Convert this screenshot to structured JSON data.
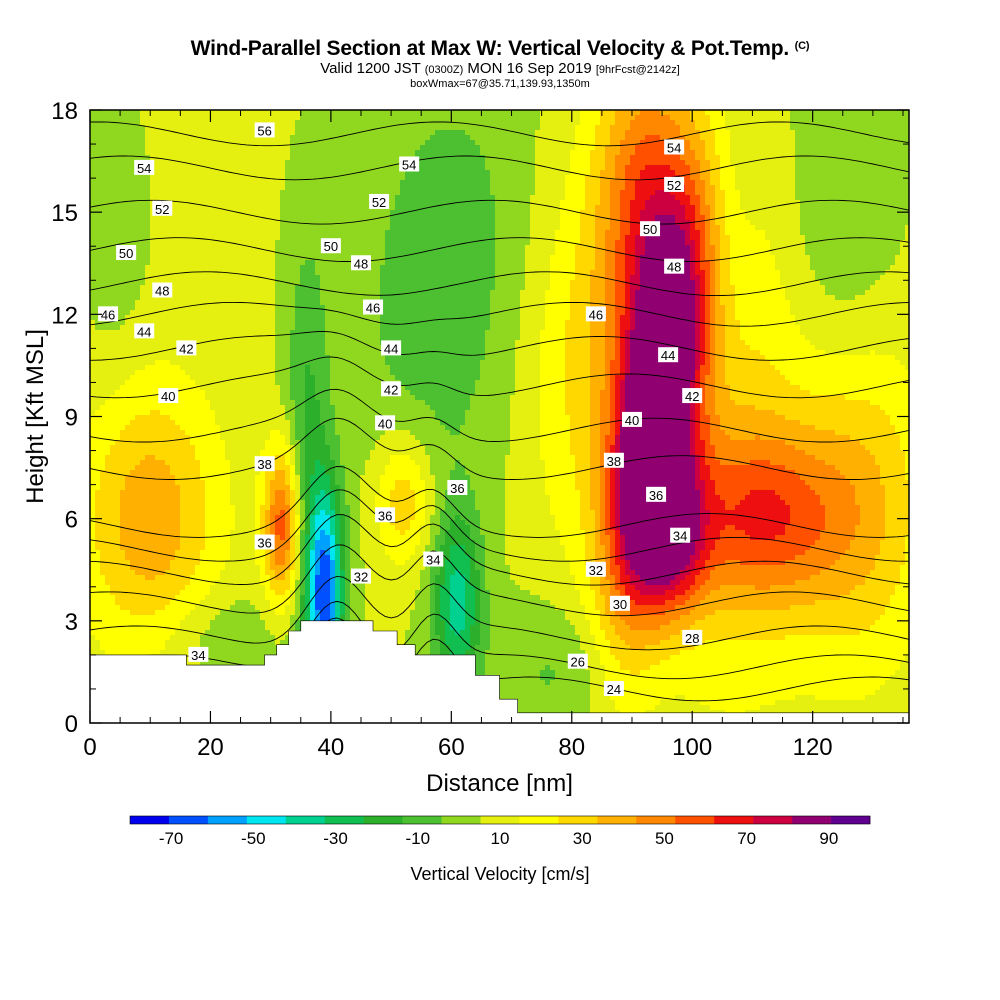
{
  "title": {
    "main": "Wind-Parallel Section at Max W: Vertical Velocity & Pot.Temp.",
    "copyright": "(C)",
    "valid_a": "Valid 1200 JST",
    "valid_utc": "(0300Z)",
    "valid_b": "MON 16 Sep 2019",
    "forecast": "[9hrFcst@2142z]",
    "box": "boxWmax=67@35.71,139.93,1350m"
  },
  "chart_data": {
    "type": "heatmap",
    "xlabel": "Distance [nm]",
    "ylabel": "Height [Kft MSL]",
    "xlim": [
      0,
      136
    ],
    "ylim": [
      0,
      18
    ],
    "xticks": [
      "0",
      "20",
      "40",
      "60",
      "80",
      "100",
      "120"
    ],
    "yticks": [
      "0",
      "3",
      "6",
      "9",
      "12",
      "15",
      "18"
    ],
    "colorbar": {
      "label": "Vertical Velocity [cm/s]",
      "levels": [
        -80,
        -70,
        -60,
        -50,
        -40,
        -30,
        -20,
        -10,
        0,
        10,
        20,
        30,
        40,
        50,
        60,
        70,
        80,
        90,
        100
      ],
      "ticks": [
        "-70",
        "-50",
        "-30",
        "-10",
        "10",
        "30",
        "50",
        "70",
        "90"
      ],
      "colors": [
        "#0000ee",
        "#0050ff",
        "#00a0ff",
        "#00e6f0",
        "#00d090",
        "#10bf50",
        "#2cb02c",
        "#4cc030",
        "#90d820",
        "#e6f010",
        "#ffff00",
        "#ffd800",
        "#ffb000",
        "#ff8800",
        "#ff5000",
        "#ee1010",
        "#cc0040",
        "#900070",
        "#600090"
      ]
    },
    "terrain_kft": [
      [
        0,
        2
      ],
      [
        16,
        2
      ],
      [
        16,
        1.7
      ],
      [
        29,
        1.7
      ],
      [
        29,
        2
      ],
      [
        31,
        2
      ],
      [
        31,
        2.3
      ],
      [
        33,
        2.3
      ],
      [
        33,
        2.7
      ],
      [
        35,
        2.7
      ],
      [
        35,
        3.0
      ],
      [
        38,
        3.0
      ],
      [
        38,
        3.0
      ],
      [
        47,
        3.0
      ],
      [
        47,
        2.7
      ],
      [
        51,
        2.7
      ],
      [
        51,
        2.3
      ],
      [
        54,
        2.3
      ],
      [
        54,
        2.0
      ],
      [
        64,
        2.0
      ],
      [
        64,
        1.4
      ],
      [
        68,
        1.4
      ],
      [
        68,
        0.7
      ],
      [
        71,
        0.7
      ],
      [
        71,
        0.3
      ],
      [
        136,
        0.3
      ]
    ],
    "velocity_features": [
      {
        "x": 94,
        "y": 9.0,
        "sx": 4.5,
        "sy": 4.0,
        "tilt": 0.7,
        "w": 110
      },
      {
        "x": 97,
        "y": 5.5,
        "sx": 4.0,
        "sy": 1.6,
        "tilt": 0,
        "w": 55
      },
      {
        "x": 92,
        "y": 15.5,
        "sx": 5.5,
        "sy": 3.0,
        "tilt": 0,
        "w": 45
      },
      {
        "x": 112,
        "y": 6.0,
        "sx": 9.0,
        "sy": 1.8,
        "tilt": 0,
        "w": 42
      },
      {
        "x": 106,
        "y": 9.0,
        "sx": 10.0,
        "sy": 6.0,
        "tilt": 0,
        "w": 22
      },
      {
        "x": 83,
        "y": 10.5,
        "sx": 8.0,
        "sy": 4.0,
        "tilt": 0,
        "w": 22
      },
      {
        "x": 128,
        "y": 6.5,
        "sx": 8.0,
        "sy": 3.5,
        "tilt": 0,
        "w": 28
      },
      {
        "x": 124,
        "y": 15.0,
        "sx": 7.0,
        "sy": 4.0,
        "tilt": 0,
        "w": -14
      },
      {
        "x": 107,
        "y": 15.5,
        "sx": 3.0,
        "sy": 4.0,
        "tilt": 0,
        "w": -8
      },
      {
        "x": 10,
        "y": 6.0,
        "sx": 8.0,
        "sy": 2.8,
        "tilt": 0,
        "w": 35
      },
      {
        "x": 32,
        "y": 5.8,
        "sx": 2.2,
        "sy": 1.6,
        "tilt": 0,
        "w": 55
      },
      {
        "x": 52,
        "y": 6.5,
        "sx": 3.5,
        "sy": 1.4,
        "tilt": 0,
        "w": 30
      },
      {
        "x": 39,
        "y": 3.8,
        "sx": 2.2,
        "sy": 2.2,
        "tilt": 0,
        "w": -75
      },
      {
        "x": 36,
        "y": 8.5,
        "sx": 2.5,
        "sy": 4.0,
        "tilt": 0,
        "w": -22
      },
      {
        "x": 61,
        "y": 3.5,
        "sx": 2.8,
        "sy": 1.8,
        "tilt": 0,
        "w": -45
      },
      {
        "x": 56,
        "y": 11.0,
        "sx": 11.0,
        "sy": 4.5,
        "tilt": 0,
        "w": -12
      },
      {
        "x": 22,
        "y": 2.5,
        "sx": 8.0,
        "sy": 1.0,
        "tilt": 0,
        "w": -12
      },
      {
        "x": 62,
        "y": 15.0,
        "sx": 10.0,
        "sy": 4.0,
        "tilt": 0,
        "w": -10
      },
      {
        "x": 4,
        "y": 14.0,
        "sx": 4.0,
        "sy": 3.0,
        "tilt": 0,
        "w": -8
      },
      {
        "x": 78,
        "y": 1.5,
        "sx": 8.0,
        "sy": 1.5,
        "tilt": 0,
        "w": -14
      }
    ],
    "isentropes": [
      {
        "level": 24,
        "y0": 1.0
      },
      {
        "level": 26,
        "y0": 1.65
      },
      {
        "level": 28,
        "y0": 2.5
      },
      {
        "level": 30,
        "y0": 3.5
      },
      {
        "level": 32,
        "y0": 4.4
      },
      {
        "level": 34,
        "y0": 5.1
      },
      {
        "level": 36,
        "y0": 5.8
      },
      {
        "level": 38,
        "y0": 7.5
      },
      {
        "level": 40,
        "y0": 8.6
      },
      {
        "level": 42,
        "y0": 9.9
      },
      {
        "level": 44,
        "y0": 11.0
      },
      {
        "level": 46,
        "y0": 12.0
      },
      {
        "level": 48,
        "y0": 12.9
      },
      {
        "level": 50,
        "y0": 13.9
      },
      {
        "level": 52,
        "y0": 15.0
      },
      {
        "level": 54,
        "y0": 16.3
      },
      {
        "level": 56,
        "y0": 17.3
      }
    ],
    "isentrope_labels": [
      {
        "text": "56",
        "x": 29,
        "y": 17.4
      },
      {
        "text": "54",
        "x": 9,
        "y": 16.3
      },
      {
        "text": "54",
        "x": 53,
        "y": 16.4
      },
      {
        "text": "54",
        "x": 97,
        "y": 16.9
      },
      {
        "text": "52",
        "x": 12,
        "y": 15.1
      },
      {
        "text": "52",
        "x": 48,
        "y": 15.3
      },
      {
        "text": "52",
        "x": 97,
        "y": 15.8
      },
      {
        "text": "50",
        "x": 6,
        "y": 13.8
      },
      {
        "text": "50",
        "x": 40,
        "y": 14.0
      },
      {
        "text": "50",
        "x": 93,
        "y": 14.5
      },
      {
        "text": "48",
        "x": 12,
        "y": 12.7
      },
      {
        "text": "48",
        "x": 45,
        "y": 13.5
      },
      {
        "text": "48",
        "x": 97,
        "y": 13.4
      },
      {
        "text": "46",
        "x": 3,
        "y": 12.0
      },
      {
        "text": "46",
        "x": 47,
        "y": 12.2
      },
      {
        "text": "46",
        "x": 84,
        "y": 12.0
      },
      {
        "text": "44",
        "x": 9,
        "y": 11.5
      },
      {
        "text": "44",
        "x": 50,
        "y": 11.0
      },
      {
        "text": "44",
        "x": 96,
        "y": 10.8
      },
      {
        "text": "42",
        "x": 16,
        "y": 11.0
      },
      {
        "text": "42",
        "x": 50,
        "y": 9.8
      },
      {
        "text": "42",
        "x": 100,
        "y": 9.6
      },
      {
        "text": "40",
        "x": 13,
        "y": 9.6
      },
      {
        "text": "40",
        "x": 49,
        "y": 8.8
      },
      {
        "text": "40",
        "x": 90,
        "y": 8.9
      },
      {
        "text": "38",
        "x": 29,
        "y": 7.6
      },
      {
        "text": "38",
        "x": 87,
        "y": 7.7
      },
      {
        "text": "36",
        "x": 29,
        "y": 5.3
      },
      {
        "text": "36",
        "x": 49,
        "y": 6.1
      },
      {
        "text": "36",
        "x": 61,
        "y": 6.9
      },
      {
        "text": "36",
        "x": 94,
        "y": 6.7
      },
      {
        "text": "34",
        "x": 18,
        "y": 2.0
      },
      {
        "text": "34",
        "x": 57,
        "y": 4.8
      },
      {
        "text": "34",
        "x": 98,
        "y": 5.5
      },
      {
        "text": "32",
        "x": 45,
        "y": 4.3
      },
      {
        "text": "32",
        "x": 84,
        "y": 4.5
      },
      {
        "text": "30",
        "x": 88,
        "y": 3.5
      },
      {
        "text": "28",
        "x": 100,
        "y": 2.5
      },
      {
        "text": "26",
        "x": 81,
        "y": 1.8
      },
      {
        "text": "24",
        "x": 87,
        "y": 1.0
      }
    ]
  }
}
